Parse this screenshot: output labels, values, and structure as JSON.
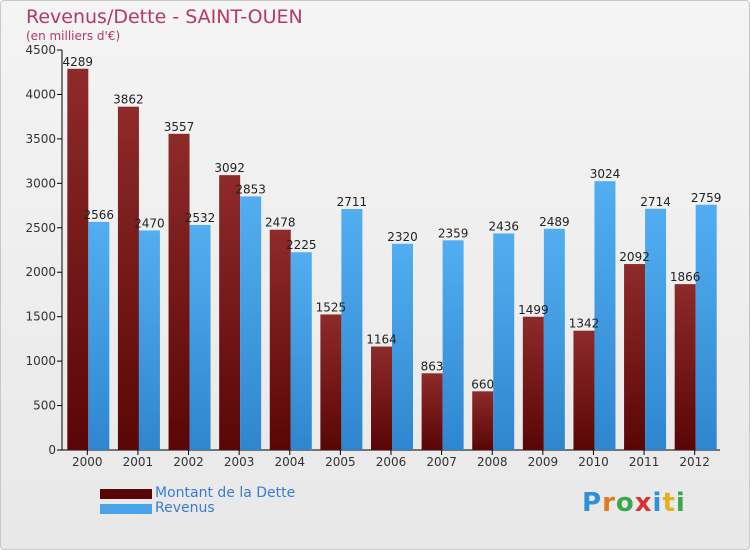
{
  "chart_data": {
    "type": "bar",
    "title": "Revenus/Dette - SAINT-OUEN",
    "subtitle": "(en milliers d'€)",
    "categories": [
      "2000",
      "2001",
      "2002",
      "2003",
      "2004",
      "2005",
      "2006",
      "2007",
      "2008",
      "2009",
      "2010",
      "2011",
      "2012"
    ],
    "series": [
      {
        "name": "Montant de la Dette",
        "color": "#8b1a1a",
        "values": [
          4289,
          3862,
          3557,
          3092,
          2478,
          1525,
          1164,
          863,
          660,
          1499,
          1342,
          2092,
          1866
        ]
      },
      {
        "name": "Revenus",
        "color": "#4aa3e8",
        "values": [
          2566,
          2470,
          2532,
          2853,
          2225,
          2711,
          2320,
          2359,
          2436,
          2489,
          3024,
          2714,
          2759
        ]
      }
    ],
    "ylim": [
      0,
      4500
    ],
    "yticks": [
      0,
      500,
      1000,
      1500,
      2000,
      2500,
      3000,
      3500,
      4000,
      4500
    ],
    "grid": false,
    "legend_position": "bottom-left"
  },
  "logo": {
    "text": "Proxiti"
  }
}
